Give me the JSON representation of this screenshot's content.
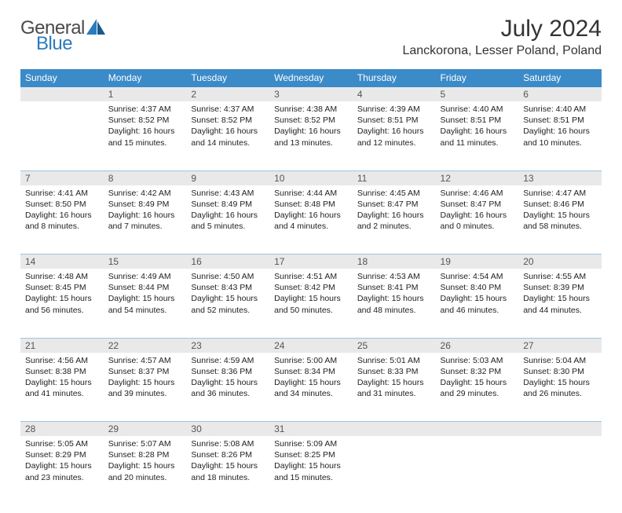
{
  "brand": {
    "word1": "General",
    "word2": "Blue",
    "color_gray": "#4a4a4a",
    "color_blue": "#2b7bbd"
  },
  "title": "July 2024",
  "location": "Lanckorona, Lesser Poland, Poland",
  "theme": {
    "header_bg": "#3b8bc9",
    "header_fg": "#ffffff",
    "daynum_bg": "#e9e9e9",
    "daynum_fg": "#555555",
    "rule": "#3b8bc9",
    "rule_light": "#9fc4e0"
  },
  "weekdays": [
    "Sunday",
    "Monday",
    "Tuesday",
    "Wednesday",
    "Thursday",
    "Friday",
    "Saturday"
  ],
  "weeks": [
    {
      "nums": [
        "",
        "1",
        "2",
        "3",
        "4",
        "5",
        "6"
      ],
      "cells": [
        null,
        {
          "sunrise": "4:37 AM",
          "sunset": "8:52 PM",
          "daylight": "16 hours and 15 minutes."
        },
        {
          "sunrise": "4:37 AM",
          "sunset": "8:52 PM",
          "daylight": "16 hours and 14 minutes."
        },
        {
          "sunrise": "4:38 AM",
          "sunset": "8:52 PM",
          "daylight": "16 hours and 13 minutes."
        },
        {
          "sunrise": "4:39 AM",
          "sunset": "8:51 PM",
          "daylight": "16 hours and 12 minutes."
        },
        {
          "sunrise": "4:40 AM",
          "sunset": "8:51 PM",
          "daylight": "16 hours and 11 minutes."
        },
        {
          "sunrise": "4:40 AM",
          "sunset": "8:51 PM",
          "daylight": "16 hours and 10 minutes."
        }
      ]
    },
    {
      "nums": [
        "7",
        "8",
        "9",
        "10",
        "11",
        "12",
        "13"
      ],
      "cells": [
        {
          "sunrise": "4:41 AM",
          "sunset": "8:50 PM",
          "daylight": "16 hours and 8 minutes."
        },
        {
          "sunrise": "4:42 AM",
          "sunset": "8:49 PM",
          "daylight": "16 hours and 7 minutes."
        },
        {
          "sunrise": "4:43 AM",
          "sunset": "8:49 PM",
          "daylight": "16 hours and 5 minutes."
        },
        {
          "sunrise": "4:44 AM",
          "sunset": "8:48 PM",
          "daylight": "16 hours and 4 minutes."
        },
        {
          "sunrise": "4:45 AM",
          "sunset": "8:47 PM",
          "daylight": "16 hours and 2 minutes."
        },
        {
          "sunrise": "4:46 AM",
          "sunset": "8:47 PM",
          "daylight": "16 hours and 0 minutes."
        },
        {
          "sunrise": "4:47 AM",
          "sunset": "8:46 PM",
          "daylight": "15 hours and 58 minutes."
        }
      ]
    },
    {
      "nums": [
        "14",
        "15",
        "16",
        "17",
        "18",
        "19",
        "20"
      ],
      "cells": [
        {
          "sunrise": "4:48 AM",
          "sunset": "8:45 PM",
          "daylight": "15 hours and 56 minutes."
        },
        {
          "sunrise": "4:49 AM",
          "sunset": "8:44 PM",
          "daylight": "15 hours and 54 minutes."
        },
        {
          "sunrise": "4:50 AM",
          "sunset": "8:43 PM",
          "daylight": "15 hours and 52 minutes."
        },
        {
          "sunrise": "4:51 AM",
          "sunset": "8:42 PM",
          "daylight": "15 hours and 50 minutes."
        },
        {
          "sunrise": "4:53 AM",
          "sunset": "8:41 PM",
          "daylight": "15 hours and 48 minutes."
        },
        {
          "sunrise": "4:54 AM",
          "sunset": "8:40 PM",
          "daylight": "15 hours and 46 minutes."
        },
        {
          "sunrise": "4:55 AM",
          "sunset": "8:39 PM",
          "daylight": "15 hours and 44 minutes."
        }
      ]
    },
    {
      "nums": [
        "21",
        "22",
        "23",
        "24",
        "25",
        "26",
        "27"
      ],
      "cells": [
        {
          "sunrise": "4:56 AM",
          "sunset": "8:38 PM",
          "daylight": "15 hours and 41 minutes."
        },
        {
          "sunrise": "4:57 AM",
          "sunset": "8:37 PM",
          "daylight": "15 hours and 39 minutes."
        },
        {
          "sunrise": "4:59 AM",
          "sunset": "8:36 PM",
          "daylight": "15 hours and 36 minutes."
        },
        {
          "sunrise": "5:00 AM",
          "sunset": "8:34 PM",
          "daylight": "15 hours and 34 minutes."
        },
        {
          "sunrise": "5:01 AM",
          "sunset": "8:33 PM",
          "daylight": "15 hours and 31 minutes."
        },
        {
          "sunrise": "5:03 AM",
          "sunset": "8:32 PM",
          "daylight": "15 hours and 29 minutes."
        },
        {
          "sunrise": "5:04 AM",
          "sunset": "8:30 PM",
          "daylight": "15 hours and 26 minutes."
        }
      ]
    },
    {
      "nums": [
        "28",
        "29",
        "30",
        "31",
        "",
        "",
        ""
      ],
      "cells": [
        {
          "sunrise": "5:05 AM",
          "sunset": "8:29 PM",
          "daylight": "15 hours and 23 minutes."
        },
        {
          "sunrise": "5:07 AM",
          "sunset": "8:28 PM",
          "daylight": "15 hours and 20 minutes."
        },
        {
          "sunrise": "5:08 AM",
          "sunset": "8:26 PM",
          "daylight": "15 hours and 18 minutes."
        },
        {
          "sunrise": "5:09 AM",
          "sunset": "8:25 PM",
          "daylight": "15 hours and 15 minutes."
        },
        null,
        null,
        null
      ]
    }
  ],
  "labels": {
    "sunrise": "Sunrise:",
    "sunset": "Sunset:",
    "daylight": "Daylight:"
  }
}
